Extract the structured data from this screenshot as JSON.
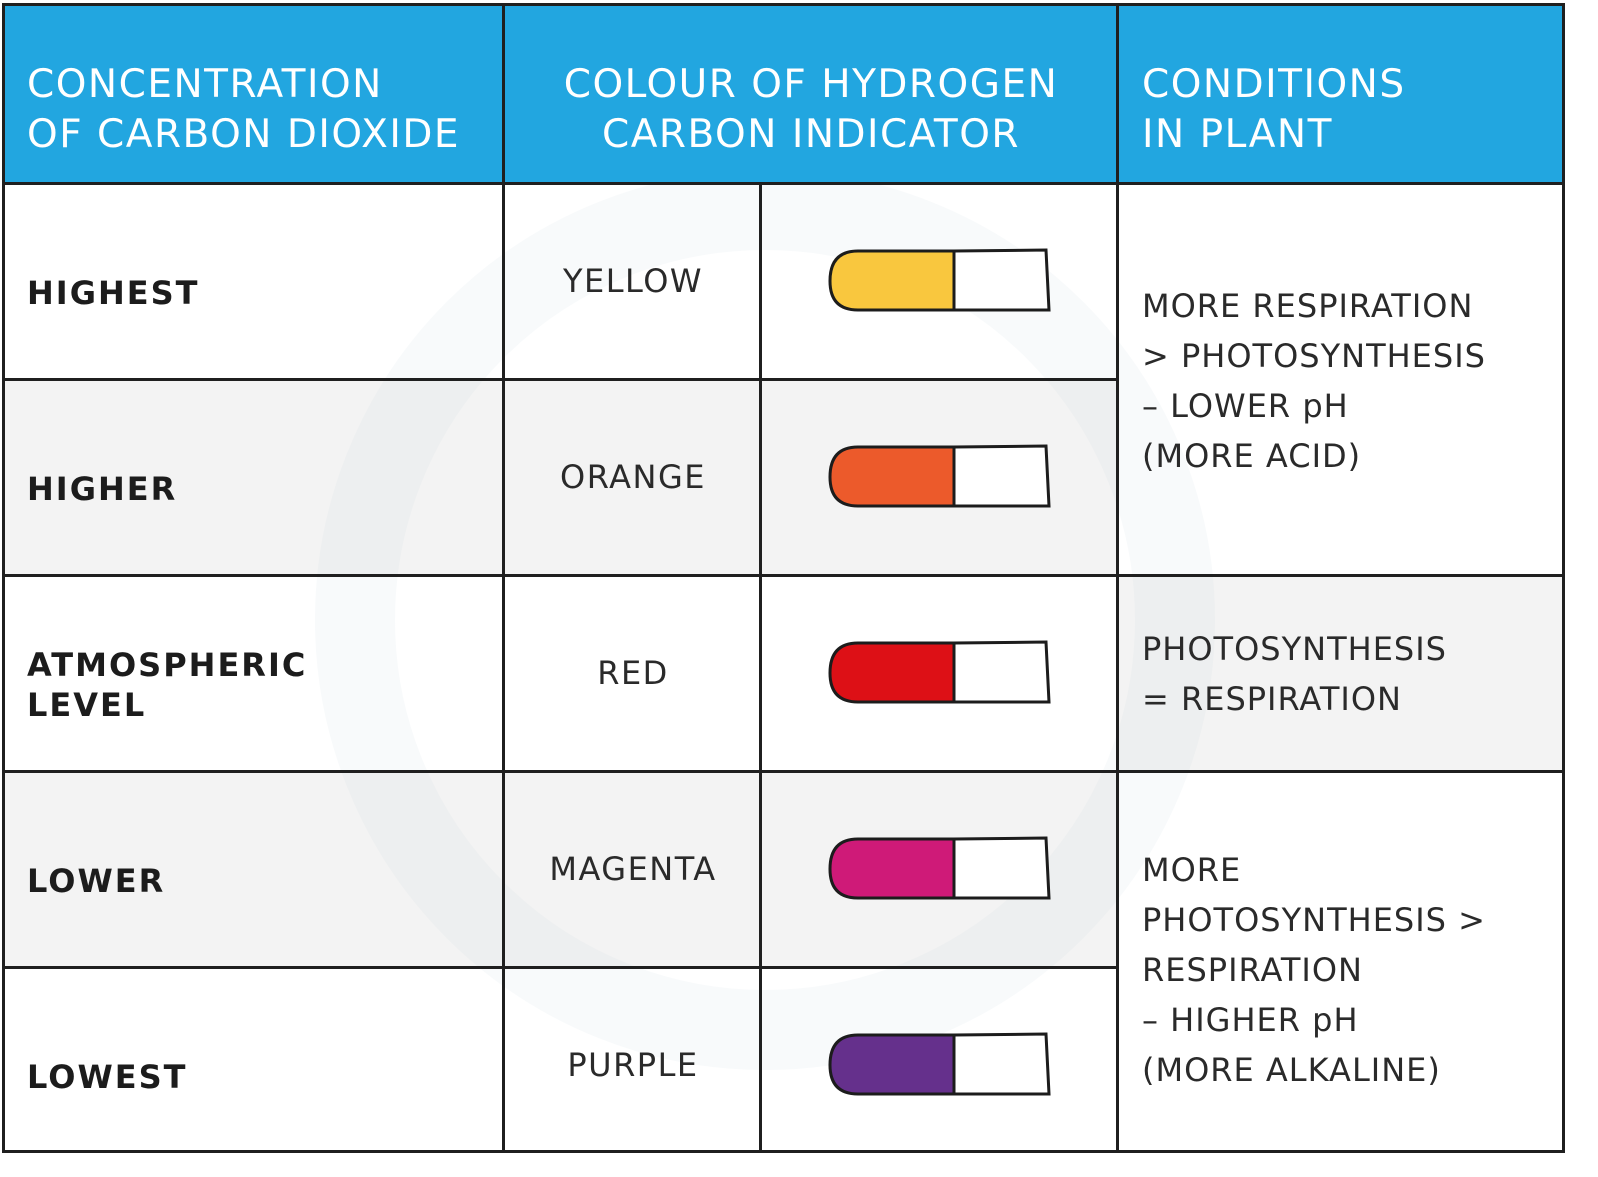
{
  "header": {
    "col1_line1": "CONCENTRATION",
    "col1_line2": "OF CARBON DIOXIDE",
    "col2_line1": "COLOUR OF HYDROGEN",
    "col2_line2": "CARBON INDICATOR",
    "col3_line1": "CONDITIONS",
    "col3_line2": "IN PLANT"
  },
  "rows": [
    {
      "concentration": "HIGHEST",
      "colour": "YELLOW",
      "swatch": "#f9c73e"
    },
    {
      "concentration": "HIGHER",
      "colour": "ORANGE",
      "swatch": "#ec5a2b"
    },
    {
      "concentration_line1": "ATMOSPHERIC",
      "concentration_line2": "LEVEL",
      "colour": "RED",
      "swatch": "#dd1016"
    },
    {
      "concentration": "LOWER",
      "colour": "MAGENTA",
      "swatch": "#cf1a78"
    },
    {
      "concentration": "LOWEST",
      "colour": "PURPLE",
      "swatch": "#65308c"
    }
  ],
  "conditions": {
    "acid": [
      "MORE RESPIRATION",
      "> PHOTOSYNTHESIS",
      "– LOWER pH",
      "(MORE ACID)"
    ],
    "neutral": [
      "PHOTOSYNTHESIS",
      "= RESPIRATION"
    ],
    "alkaline": [
      "MORE",
      "PHOTOSYNTHESIS >",
      "RESPIRATION",
      "– HIGHER pH",
      "(MORE ALKALINE)"
    ]
  },
  "colors": {
    "header_bg": "#22a6e0",
    "shaded_row": "#f3f3f3",
    "border": "#1f1f1f"
  }
}
